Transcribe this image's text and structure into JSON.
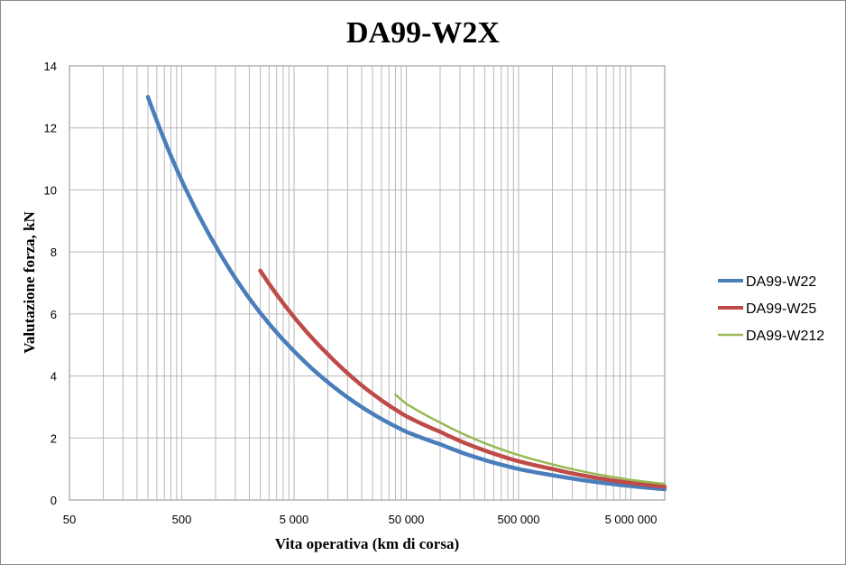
{
  "chart_data": {
    "type": "line",
    "title": "DA99-W2X",
    "xlabel": "Vita operativa (km di corsa)",
    "ylabel": "Valutazione forza, kN",
    "x_scale": "log",
    "xlim": [
      50,
      10000000
    ],
    "ylim": [
      0,
      14
    ],
    "x_tick_values": [
      50,
      500,
      5000,
      50000,
      500000,
      5000000
    ],
    "x_tick_labels": [
      "50",
      "500",
      "5 000",
      "50 000",
      "500 000",
      "5 000 000"
    ],
    "y_ticks": [
      0,
      2,
      4,
      6,
      8,
      10,
      12,
      14
    ],
    "grid": {
      "major_y": true,
      "minor_x": true
    },
    "legend_position": "right",
    "series": [
      {
        "name": "DA99-W22",
        "color": "#4a7ebb",
        "x": [
          250,
          500,
          1000,
          2000,
          5000,
          10000,
          20000,
          50000,
          100000,
          500000,
          1000000,
          5000000,
          10000000
        ],
        "y": [
          13.0,
          10.3,
          8.2,
          6.5,
          4.8,
          3.8,
          3.0,
          2.2,
          1.8,
          1.0,
          0.8,
          0.45,
          0.35
        ]
      },
      {
        "name": "DA99-W25",
        "color": "#be4b48",
        "x": [
          2500,
          5000,
          10000,
          20000,
          50000,
          100000,
          500000,
          1000000,
          5000000,
          10000000
        ],
        "y": [
          7.4,
          5.9,
          4.7,
          3.7,
          2.7,
          2.2,
          1.25,
          1.0,
          0.55,
          0.43
        ]
      },
      {
        "name": "DA99-W212",
        "color": "#98b954",
        "x": [
          40000,
          50000,
          100000,
          500000,
          1000000,
          5000000,
          10000000
        ],
        "y": [
          3.4,
          3.1,
          2.5,
          1.45,
          1.15,
          0.65,
          0.52
        ]
      }
    ]
  }
}
